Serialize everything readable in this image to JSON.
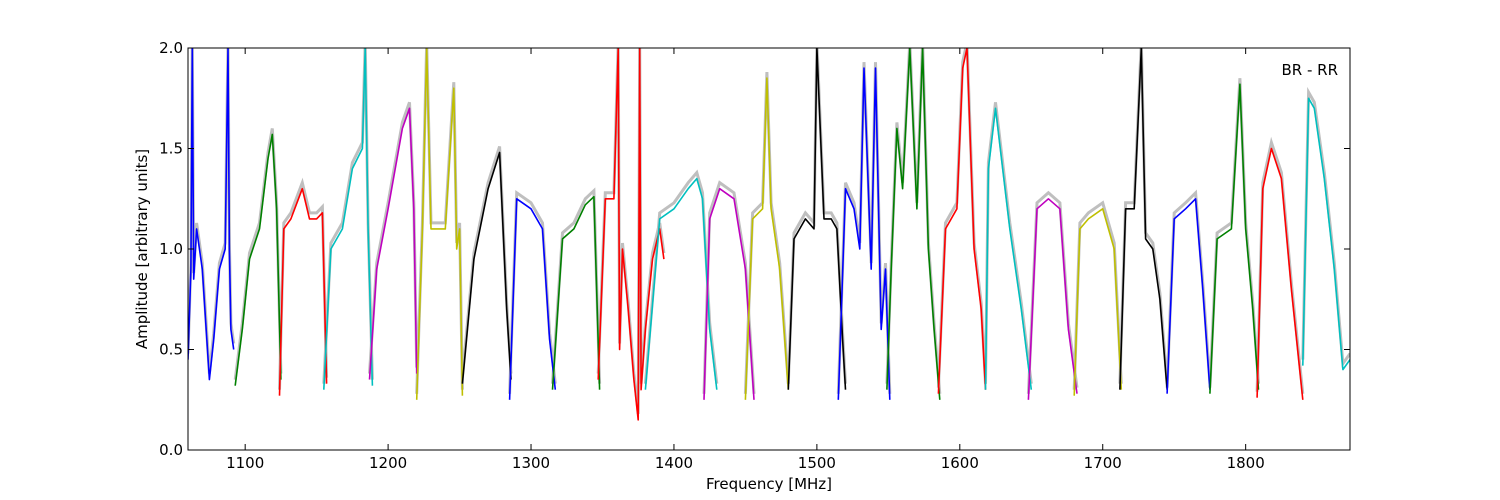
{
  "chart_data": {
    "type": "line",
    "title": "",
    "xlabel": "Frequency [MHz]",
    "ylabel": "Amplitude [arbitrary units]",
    "annotation": "BR - RR",
    "xlim": [
      1060,
      1873
    ],
    "ylim": [
      0.0,
      2.0
    ],
    "xticks": [
      1100,
      1200,
      1300,
      1400,
      1500,
      1600,
      1700,
      1800
    ],
    "yticks": [
      0.0,
      0.5,
      1.0,
      1.5,
      2.0
    ],
    "xtick_labels": [
      "1100",
      "1200",
      "1300",
      "1400",
      "1500",
      "1600",
      "1700",
      "1800"
    ],
    "ytick_labels": [
      "0.0",
      "0.5",
      "1.0",
      "1.5",
      "2.0"
    ],
    "grid": false,
    "background_color": "#bfbfbf",
    "series": [
      {
        "color": "#0000ff",
        "x": [
          1060,
          1062,
          1063,
          1064,
          1066,
          1070,
          1075,
          1078,
          1082,
          1086,
          1088,
          1089,
          1090,
          1092
        ],
        "y": [
          0.45,
          0.9,
          2.0,
          0.85,
          1.1,
          0.9,
          0.35,
          0.55,
          0.9,
          1.0,
          2.0,
          1.0,
          0.6,
          0.5
        ]
      },
      {
        "color": "#008000",
        "x": [
          1093,
          1098,
          1103,
          1110,
          1116,
          1119,
          1122,
          1125
        ],
        "y": [
          0.32,
          0.6,
          0.95,
          1.1,
          1.45,
          1.57,
          1.2,
          0.35
        ]
      },
      {
        "color": "#ff0000",
        "x": [
          1124,
          1127,
          1132,
          1140,
          1145,
          1150,
          1154,
          1157
        ],
        "y": [
          0.27,
          1.1,
          1.15,
          1.3,
          1.15,
          1.15,
          1.18,
          0.33
        ]
      },
      {
        "color": "#00bfbf",
        "x": [
          1155,
          1160,
          1168,
          1175,
          1182,
          1184,
          1186,
          1189
        ],
        "y": [
          0.3,
          1.0,
          1.1,
          1.4,
          1.5,
          2.0,
          1.1,
          0.32
        ]
      },
      {
        "color": "#bf00bf",
        "x": [
          1187,
          1192,
          1200,
          1210,
          1215,
          1218,
          1220
        ],
        "y": [
          0.35,
          0.9,
          1.2,
          1.6,
          1.7,
          1.2,
          0.38
        ]
      },
      {
        "color": "#bfbf00",
        "x": [
          1220,
          1224,
          1227,
          1230,
          1240,
          1246,
          1248,
          1250,
          1252
        ],
        "y": [
          0.25,
          1.1,
          2.0,
          1.1,
          1.1,
          1.8,
          1.0,
          1.1,
          0.27
        ]
      },
      {
        "color": "#000000",
        "x": [
          1252,
          1260,
          1270,
          1278,
          1283,
          1286
        ],
        "y": [
          0.33,
          0.95,
          1.3,
          1.48,
          0.7,
          0.35
        ]
      },
      {
        "color": "#0000ff",
        "x": [
          1285,
          1290,
          1300,
          1308,
          1313,
          1317
        ],
        "y": [
          0.25,
          1.25,
          1.2,
          1.1,
          0.55,
          0.3
        ]
      },
      {
        "color": "#008000",
        "x": [
          1315,
          1322,
          1330,
          1338,
          1344,
          1348
        ],
        "y": [
          0.3,
          1.05,
          1.1,
          1.22,
          1.26,
          0.3
        ]
      },
      {
        "color": "#ff0000",
        "x": [
          1347,
          1352,
          1358,
          1361,
          1362,
          1364,
          1368,
          1372,
          1375,
          1376,
          1377,
          1380,
          1385,
          1390,
          1393
        ],
        "y": [
          0.35,
          1.25,
          1.25,
          2.0,
          0.5,
          1.0,
          0.7,
          0.35,
          0.15,
          2.0,
          0.3,
          0.6,
          0.95,
          1.1,
          0.95
        ]
      },
      {
        "color": "#00bfbf",
        "x": [
          1380,
          1390,
          1400,
          1410,
          1416,
          1420,
          1425,
          1430
        ],
        "y": [
          0.3,
          1.15,
          1.2,
          1.3,
          1.35,
          1.25,
          0.6,
          0.3
        ]
      },
      {
        "color": "#bf00bf",
        "x": [
          1421,
          1425,
          1432,
          1442,
          1450,
          1456
        ],
        "y": [
          0.25,
          1.15,
          1.3,
          1.25,
          0.9,
          0.25
        ]
      },
      {
        "color": "#bfbf00",
        "x": [
          1450,
          1455,
          1462,
          1465,
          1468,
          1474,
          1480
        ],
        "y": [
          0.25,
          1.15,
          1.2,
          1.85,
          1.2,
          0.9,
          0.3
        ]
      },
      {
        "color": "#000000",
        "x": [
          1480,
          1484,
          1492,
          1498,
          1500,
          1505,
          1510,
          1514,
          1518,
          1520
        ],
        "y": [
          0.3,
          1.05,
          1.15,
          1.1,
          2.0,
          1.15,
          1.15,
          1.1,
          0.55,
          0.3
        ]
      },
      {
        "color": "#0000ff",
        "x": [
          1515,
          1520,
          1526,
          1530,
          1533,
          1538,
          1541,
          1545,
          1548,
          1551
        ],
        "y": [
          0.25,
          1.3,
          1.2,
          1.0,
          1.9,
          0.9,
          1.9,
          0.6,
          0.9,
          0.25
        ]
      },
      {
        "color": "#008000",
        "x": [
          1549,
          1552,
          1556,
          1560,
          1565,
          1570,
          1574,
          1578,
          1582,
          1586
        ],
        "y": [
          0.3,
          0.9,
          1.6,
          1.3,
          2.0,
          1.2,
          2.0,
          1.0,
          0.6,
          0.25
        ]
      },
      {
        "color": "#ff0000",
        "x": [
          1585,
          1590,
          1598,
          1602,
          1605,
          1610,
          1615,
          1618
        ],
        "y": [
          0.28,
          1.1,
          1.2,
          1.9,
          2.0,
          1.0,
          0.7,
          0.3
        ]
      },
      {
        "color": "#00bfbf",
        "x": [
          1618,
          1620,
          1625,
          1635,
          1643,
          1650
        ],
        "y": [
          0.3,
          1.4,
          1.7,
          1.1,
          0.7,
          0.3
        ]
      },
      {
        "color": "#bf00bf",
        "x": [
          1648,
          1654,
          1662,
          1670,
          1676,
          1682
        ],
        "y": [
          0.25,
          1.2,
          1.25,
          1.2,
          0.6,
          0.28
        ]
      },
      {
        "color": "#bfbf00",
        "x": [
          1680,
          1684,
          1690,
          1700,
          1708,
          1713
        ],
        "y": [
          0.27,
          1.1,
          1.15,
          1.2,
          1.0,
          0.3
        ]
      },
      {
        "color": "#000000",
        "x": [
          1712,
          1716,
          1722,
          1727,
          1730,
          1735,
          1740,
          1745
        ],
        "y": [
          0.3,
          1.2,
          1.2,
          2.0,
          1.05,
          1.0,
          0.75,
          0.3
        ]
      },
      {
        "color": "#0000ff",
        "x": [
          1745,
          1750,
          1758,
          1765,
          1770,
          1775
        ],
        "y": [
          0.28,
          1.15,
          1.2,
          1.25,
          0.8,
          0.3
        ]
      },
      {
        "color": "#008000",
        "x": [
          1775,
          1780,
          1790,
          1796,
          1800,
          1805,
          1809
        ],
        "y": [
          0.28,
          1.05,
          1.1,
          1.82,
          1.1,
          0.7,
          0.3
        ]
      },
      {
        "color": "#ff0000",
        "x": [
          1808,
          1812,
          1818,
          1825,
          1832,
          1840
        ],
        "y": [
          0.26,
          1.3,
          1.5,
          1.35,
          0.8,
          0.25
        ]
      },
      {
        "color": "#00bfbf",
        "x": [
          1840,
          1844,
          1848,
          1855,
          1862,
          1868,
          1873
        ],
        "y": [
          0.42,
          1.75,
          1.7,
          1.35,
          0.9,
          0.4,
          0.45
        ]
      }
    ]
  }
}
